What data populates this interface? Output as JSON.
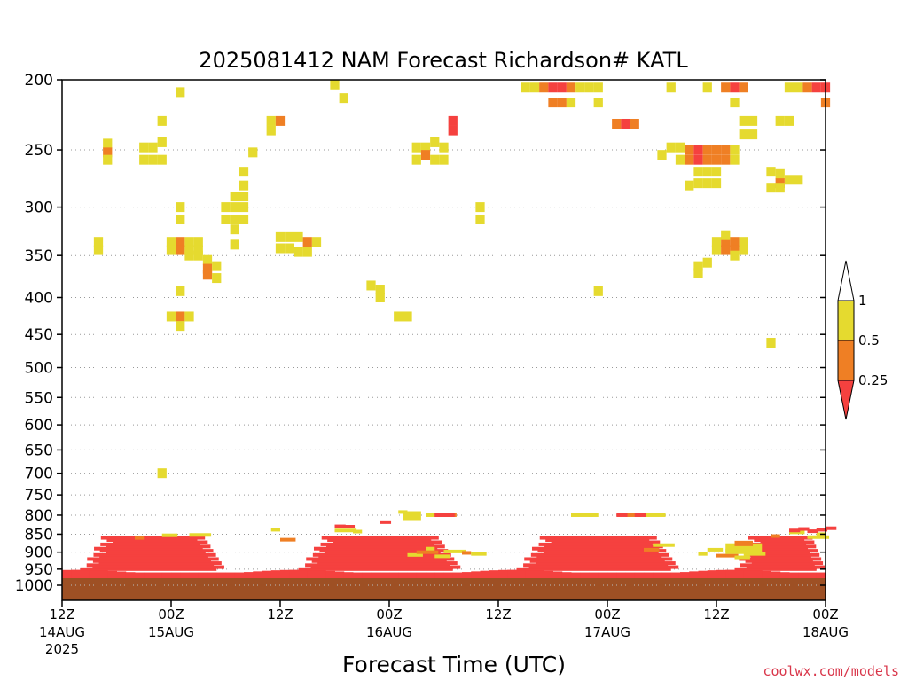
{
  "chart_data": {
    "type": "heatmap",
    "title": "2025081412 NAM Forecast Richardson# KATL",
    "xlabel": "Forecast Time (UTC)",
    "ylabel": "",
    "credit": "coolwx.com/models",
    "yscale": "log-pressure",
    "yrange_hpa": [
      1000,
      200
    ],
    "y_ticks": [
      "200",
      "250",
      "300",
      "350",
      "400",
      "450",
      "500",
      "550",
      "600",
      "650",
      "700",
      "750",
      "800",
      "850",
      "900",
      "950",
      "1000"
    ],
    "y_tick_values": [
      200,
      250,
      300,
      350,
      400,
      450,
      500,
      550,
      600,
      650,
      700,
      750,
      800,
      850,
      900,
      950,
      1000
    ],
    "x_range_hours": [
      0,
      84
    ],
    "x_ticks": [
      {
        "hour": 0,
        "time": "12Z",
        "date": "14AUG",
        "year": "2025"
      },
      {
        "hour": 12,
        "time": "00Z",
        "date": "15AUG",
        "year": ""
      },
      {
        "hour": 24,
        "time": "12Z",
        "date": "",
        "year": ""
      },
      {
        "hour": 36,
        "time": "00Z",
        "date": "16AUG",
        "year": ""
      },
      {
        "hour": 48,
        "time": "12Z",
        "date": "",
        "year": ""
      },
      {
        "hour": 60,
        "time": "00Z",
        "date": "17AUG",
        "year": ""
      },
      {
        "hour": 72,
        "time": "12Z",
        "date": "",
        "year": ""
      },
      {
        "hour": 84,
        "time": "00Z",
        "date": "18AUG",
        "year": ""
      }
    ],
    "grid": "dotted horizontal at pressure ticks",
    "colorbar": {
      "labels": [
        "1",
        "0.5",
        "0.25"
      ],
      "label_values": [
        1,
        0.5,
        0.25
      ],
      "bins": [
        {
          "range": "> 1",
          "color": "#ffffff"
        },
        {
          "range": "0.5 - 1",
          "color": "#e5da2f"
        },
        {
          "range": "0.25 - 0.5",
          "color": "#ef7f24"
        },
        {
          "range": "< 0.25",
          "color": "#f5413f"
        }
      ]
    },
    "ground_color": "#9e5024",
    "cell_width_hours": 1,
    "cells": [
      {
        "t": 13,
        "p": 208,
        "c": "y"
      },
      {
        "t": 30,
        "p": 203,
        "c": "y"
      },
      {
        "t": 31,
        "p": 212,
        "c": "y"
      },
      {
        "t": 51,
        "p": 205,
        "c": "y"
      },
      {
        "t": 52,
        "p": 205,
        "c": "y"
      },
      {
        "t": 53,
        "p": 205,
        "c": "o"
      },
      {
        "t": 54,
        "p": 205,
        "c": "r"
      },
      {
        "t": 55,
        "p": 205,
        "c": "r"
      },
      {
        "t": 56,
        "p": 205,
        "c": "o"
      },
      {
        "t": 57,
        "p": 205,
        "c": "y"
      },
      {
        "t": 58,
        "p": 205,
        "c": "y"
      },
      {
        "t": 59,
        "p": 205,
        "c": "y"
      },
      {
        "t": 54,
        "p": 215,
        "c": "o"
      },
      {
        "t": 55,
        "p": 215,
        "c": "o"
      },
      {
        "t": 56,
        "p": 215,
        "c": "y"
      },
      {
        "t": 59,
        "p": 215,
        "c": "y"
      },
      {
        "t": 67,
        "p": 205,
        "c": "y"
      },
      {
        "t": 71,
        "p": 205,
        "c": "y"
      },
      {
        "t": 73,
        "p": 205,
        "c": "o"
      },
      {
        "t": 74,
        "p": 205,
        "c": "r"
      },
      {
        "t": 75,
        "p": 205,
        "c": "o"
      },
      {
        "t": 74,
        "p": 215,
        "c": "y"
      },
      {
        "t": 80,
        "p": 205,
        "c": "y"
      },
      {
        "t": 81,
        "p": 205,
        "c": "y"
      },
      {
        "t": 82,
        "p": 205,
        "c": "o"
      },
      {
        "t": 83,
        "p": 205,
        "c": "r"
      },
      {
        "t": 84,
        "p": 205,
        "c": "r"
      },
      {
        "t": 84,
        "p": 215,
        "c": "o"
      },
      {
        "t": 11,
        "p": 228,
        "c": "y"
      },
      {
        "t": 23,
        "p": 228,
        "c": "y"
      },
      {
        "t": 24,
        "p": 228,
        "c": "o"
      },
      {
        "t": 23,
        "p": 235,
        "c": "y"
      },
      {
        "t": 43,
        "p": 228,
        "c": "r"
      },
      {
        "t": 43,
        "p": 235,
        "c": "r"
      },
      {
        "t": 61,
        "p": 230,
        "c": "o"
      },
      {
        "t": 62,
        "p": 230,
        "c": "r"
      },
      {
        "t": 63,
        "p": 230,
        "c": "o"
      },
      {
        "t": 75,
        "p": 228,
        "c": "y"
      },
      {
        "t": 76,
        "p": 228,
        "c": "y"
      },
      {
        "t": 75,
        "p": 238,
        "c": "y"
      },
      {
        "t": 76,
        "p": 238,
        "c": "y"
      },
      {
        "t": 79,
        "p": 228,
        "c": "y"
      },
      {
        "t": 80,
        "p": 228,
        "c": "y"
      },
      {
        "t": 5,
        "p": 245,
        "c": "y"
      },
      {
        "t": 5,
        "p": 252,
        "c": "o"
      },
      {
        "t": 5,
        "p": 258,
        "c": "y"
      },
      {
        "t": 9,
        "p": 248,
        "c": "y"
      },
      {
        "t": 10,
        "p": 248,
        "c": "y"
      },
      {
        "t": 11,
        "p": 244,
        "c": "y"
      },
      {
        "t": 9,
        "p": 258,
        "c": "y"
      },
      {
        "t": 10,
        "p": 258,
        "c": "y"
      },
      {
        "t": 11,
        "p": 258,
        "c": "y"
      },
      {
        "t": 21,
        "p": 252,
        "c": "y"
      },
      {
        "t": 39,
        "p": 248,
        "c": "y"
      },
      {
        "t": 40,
        "p": 248,
        "c": "y"
      },
      {
        "t": 41,
        "p": 244,
        "c": "y"
      },
      {
        "t": 42,
        "p": 248,
        "c": "y"
      },
      {
        "t": 40,
        "p": 254,
        "c": "o"
      },
      {
        "t": 39,
        "p": 258,
        "c": "y"
      },
      {
        "t": 41,
        "p": 258,
        "c": "y"
      },
      {
        "t": 42,
        "p": 258,
        "c": "y"
      },
      {
        "t": 66,
        "p": 254,
        "c": "y"
      },
      {
        "t": 67,
        "p": 248,
        "c": "y"
      },
      {
        "t": 68,
        "p": 248,
        "c": "y"
      },
      {
        "t": 69,
        "p": 250,
        "c": "o"
      },
      {
        "t": 70,
        "p": 250,
        "c": "r"
      },
      {
        "t": 71,
        "p": 250,
        "c": "o"
      },
      {
        "t": 72,
        "p": 250,
        "c": "o"
      },
      {
        "t": 73,
        "p": 250,
        "c": "o"
      },
      {
        "t": 74,
        "p": 250,
        "c": "y"
      },
      {
        "t": 68,
        "p": 258,
        "c": "y"
      },
      {
        "t": 69,
        "p": 258,
        "c": "o"
      },
      {
        "t": 70,
        "p": 258,
        "c": "r"
      },
      {
        "t": 71,
        "p": 258,
        "c": "o"
      },
      {
        "t": 72,
        "p": 258,
        "c": "o"
      },
      {
        "t": 73,
        "p": 258,
        "c": "o"
      },
      {
        "t": 74,
        "p": 258,
        "c": "y"
      },
      {
        "t": 70,
        "p": 268,
        "c": "y"
      },
      {
        "t": 71,
        "p": 268,
        "c": "y"
      },
      {
        "t": 72,
        "p": 268,
        "c": "y"
      },
      {
        "t": 70,
        "p": 278,
        "c": "y"
      },
      {
        "t": 71,
        "p": 278,
        "c": "y"
      },
      {
        "t": 72,
        "p": 278,
        "c": "y"
      },
      {
        "t": 69,
        "p": 280,
        "c": "y"
      },
      {
        "t": 78,
        "p": 268,
        "c": "y"
      },
      {
        "t": 79,
        "p": 270,
        "c": "y"
      },
      {
        "t": 80,
        "p": 275,
        "c": "y"
      },
      {
        "t": 81,
        "p": 275,
        "c": "y"
      },
      {
        "t": 79,
        "p": 278,
        "c": "o"
      },
      {
        "t": 78,
        "p": 282,
        "c": "y"
      },
      {
        "t": 79,
        "p": 282,
        "c": "y"
      },
      {
        "t": 20,
        "p": 268,
        "c": "y"
      },
      {
        "t": 20,
        "p": 280,
        "c": "y"
      },
      {
        "t": 19,
        "p": 290,
        "c": "y"
      },
      {
        "t": 20,
        "p": 290,
        "c": "y"
      },
      {
        "t": 18,
        "p": 300,
        "c": "y"
      },
      {
        "t": 19,
        "p": 300,
        "c": "y"
      },
      {
        "t": 20,
        "p": 300,
        "c": "y"
      },
      {
        "t": 18,
        "p": 312,
        "c": "y"
      },
      {
        "t": 19,
        "p": 312,
        "c": "y"
      },
      {
        "t": 20,
        "p": 312,
        "c": "y"
      },
      {
        "t": 19,
        "p": 322,
        "c": "y"
      },
      {
        "t": 13,
        "p": 300,
        "c": "y"
      },
      {
        "t": 13,
        "p": 312,
        "c": "y"
      },
      {
        "t": 46,
        "p": 300,
        "c": "y"
      },
      {
        "t": 46,
        "p": 312,
        "c": "y"
      },
      {
        "t": 4,
        "p": 335,
        "c": "y"
      },
      {
        "t": 4,
        "p": 344,
        "c": "y"
      },
      {
        "t": 12,
        "p": 335,
        "c": "y"
      },
      {
        "t": 13,
        "p": 335,
        "c": "o"
      },
      {
        "t": 14,
        "p": 335,
        "c": "y"
      },
      {
        "t": 15,
        "p": 335,
        "c": "y"
      },
      {
        "t": 12,
        "p": 344,
        "c": "y"
      },
      {
        "t": 13,
        "p": 344,
        "c": "o"
      },
      {
        "t": 14,
        "p": 344,
        "c": "y"
      },
      {
        "t": 15,
        "p": 344,
        "c": "y"
      },
      {
        "t": 14,
        "p": 350,
        "c": "y"
      },
      {
        "t": 15,
        "p": 350,
        "c": "y"
      },
      {
        "t": 19,
        "p": 338,
        "c": "y"
      },
      {
        "t": 24,
        "p": 330,
        "c": "y"
      },
      {
        "t": 25,
        "p": 330,
        "c": "y"
      },
      {
        "t": 26,
        "p": 330,
        "c": "y"
      },
      {
        "t": 27,
        "p": 335,
        "c": "o"
      },
      {
        "t": 28,
        "p": 335,
        "c": "y"
      },
      {
        "t": 24,
        "p": 342,
        "c": "y"
      },
      {
        "t": 25,
        "p": 342,
        "c": "y"
      },
      {
        "t": 26,
        "p": 346,
        "c": "y"
      },
      {
        "t": 27,
        "p": 346,
        "c": "y"
      },
      {
        "t": 72,
        "p": 335,
        "c": "y"
      },
      {
        "t": 73,
        "p": 335,
        "c": "o"
      },
      {
        "t": 74,
        "p": 335,
        "c": "o"
      },
      {
        "t": 75,
        "p": 335,
        "c": "y"
      },
      {
        "t": 72,
        "p": 344,
        "c": "y"
      },
      {
        "t": 73,
        "p": 344,
        "c": "o"
      },
      {
        "t": 74,
        "p": 344,
        "c": "o"
      },
      {
        "t": 75,
        "p": 344,
        "c": "y"
      },
      {
        "t": 73,
        "p": 328,
        "c": "y"
      },
      {
        "t": 74,
        "p": 350,
        "c": "y"
      },
      {
        "t": 16,
        "p": 355,
        "c": "y"
      },
      {
        "t": 16,
        "p": 365,
        "c": "o"
      },
      {
        "t": 16,
        "p": 372,
        "c": "o"
      },
      {
        "t": 17,
        "p": 362,
        "c": "y"
      },
      {
        "t": 17,
        "p": 376,
        "c": "y"
      },
      {
        "t": 70,
        "p": 362,
        "c": "y"
      },
      {
        "t": 71,
        "p": 358,
        "c": "y"
      },
      {
        "t": 70,
        "p": 370,
        "c": "y"
      },
      {
        "t": 34,
        "p": 385,
        "c": "y"
      },
      {
        "t": 35,
        "p": 390,
        "c": "y"
      },
      {
        "t": 35,
        "p": 400,
        "c": "y"
      },
      {
        "t": 13,
        "p": 392,
        "c": "y"
      },
      {
        "t": 59,
        "p": 392,
        "c": "y"
      },
      {
        "t": 12,
        "p": 425,
        "c": "y"
      },
      {
        "t": 13,
        "p": 425,
        "c": "o"
      },
      {
        "t": 14,
        "p": 425,
        "c": "y"
      },
      {
        "t": 13,
        "p": 438,
        "c": "y"
      },
      {
        "t": 37,
        "p": 425,
        "c": "y"
      },
      {
        "t": 38,
        "p": 425,
        "c": "y"
      },
      {
        "t": 78,
        "p": 462,
        "c": "y"
      },
      {
        "t": 11,
        "p": 700,
        "c": "y"
      }
    ]
  }
}
